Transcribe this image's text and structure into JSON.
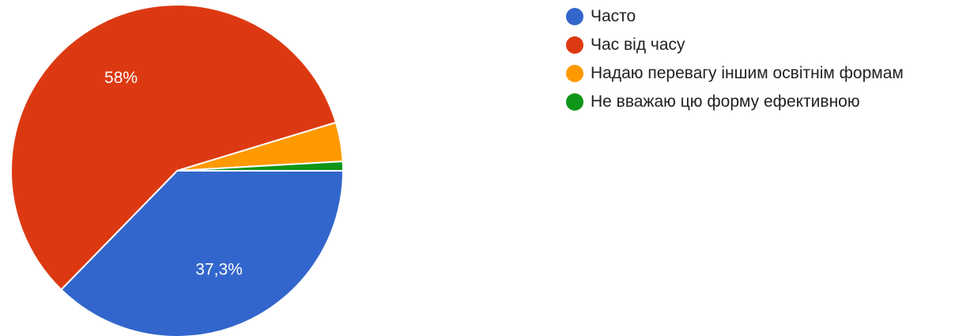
{
  "chart_data": {
    "type": "pie",
    "categories": [
      "Часто",
      "Час від часу",
      "Надаю перевагу іншим освітнім формам",
      "Не вважаю цю форму ефективною"
    ],
    "values": [
      37.3,
      58.0,
      3.8,
      0.9
    ],
    "data_labels": [
      "37,3%",
      "58%",
      "",
      ""
    ],
    "colors": [
      "#3366cc",
      "#dc3912",
      "#ff9900",
      "#109618"
    ],
    "legend": "right"
  },
  "legend": {
    "items": [
      {
        "label": "Часто",
        "color": "#3366cc"
      },
      {
        "label": "Час від часу",
        "color": "#dc3912"
      },
      {
        "label": "Надаю перевагу іншим освітнім формам",
        "color": "#ff9900"
      },
      {
        "label": "Не вважаю цю форму ефективною",
        "color": "#109618"
      }
    ]
  }
}
